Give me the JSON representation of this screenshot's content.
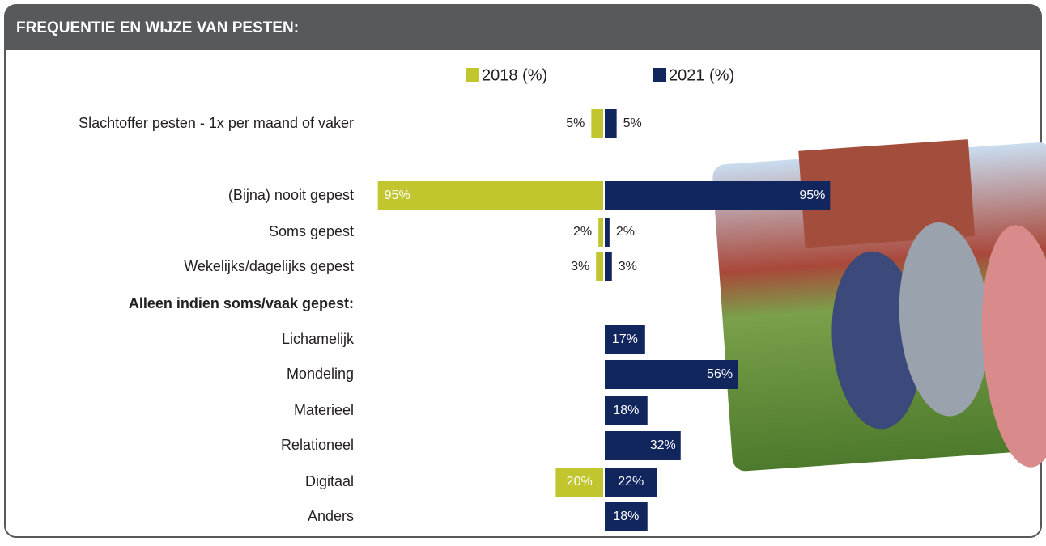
{
  "chart_data": {
    "type": "butterfly-bar",
    "title": "FREQUENTIE EN WIJZE VAN PESTEN:",
    "categories": [
      "Slachtoffer pesten - 1x per maand of vaker",
      "(Bijna) nooit gepest",
      "Soms gepest",
      "Wekelijks/dagelijks gepest",
      "Alleen indien soms/vaak gepest:",
      "Lichamelijk",
      "Mondeling",
      "Materieel",
      "Relationeel",
      "Digitaal",
      "Anders"
    ],
    "series": [
      {
        "name": "2018 (%)",
        "color": "#c1c62e",
        "values": [
          5,
          95,
          2,
          3,
          null,
          null,
          null,
          null,
          null,
          20,
          null
        ],
        "value_labels": [
          "5%",
          "95%",
          "2%",
          "3%",
          null,
          null,
          null,
          null,
          null,
          "20%",
          null
        ]
      },
      {
        "name": "2021 (%)",
        "color": "#12265e",
        "values": [
          5,
          95,
          2,
          3,
          null,
          17,
          56,
          18,
          32,
          22,
          18
        ],
        "value_labels": [
          "5%",
          "95%",
          "2%",
          "3%",
          null,
          "17%",
          "56%",
          "18%",
          "32%",
          "22%",
          "18%"
        ]
      }
    ]
  }
}
